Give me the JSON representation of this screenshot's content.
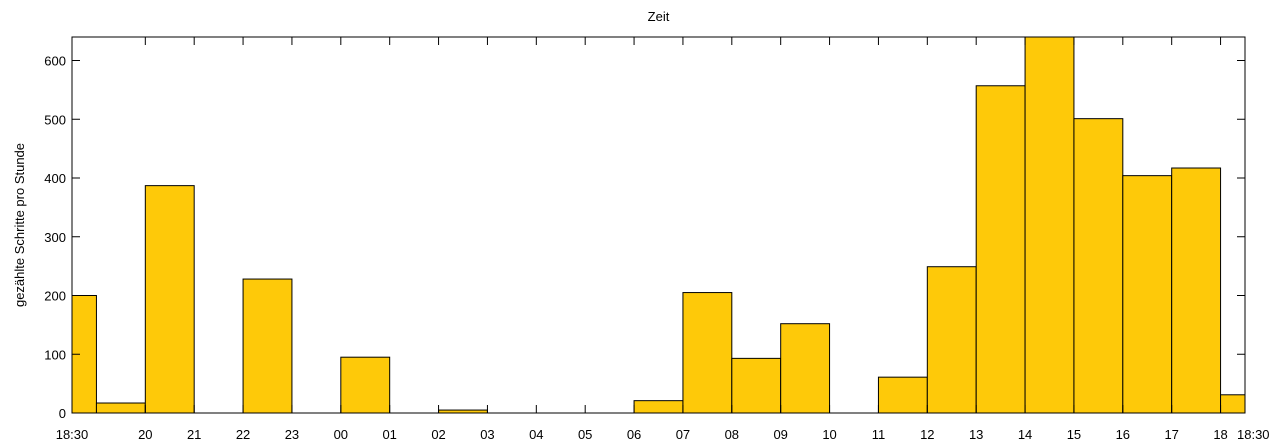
{
  "chart_data": {
    "type": "bar",
    "title": "Zeit",
    "xlabel": "",
    "ylabel": "gezählte Schritte pro Stunde",
    "ylim": [
      0,
      640
    ],
    "yticks": [
      0,
      100,
      200,
      300,
      400,
      500,
      600
    ],
    "xlim": [
      "18:30",
      "18:30 (next day)"
    ],
    "xtick_labels": [
      "18:30",
      "20",
      "21",
      "22",
      "23",
      "00",
      "01",
      "02",
      "03",
      "04",
      "05",
      "06",
      "07",
      "08",
      "09",
      "10",
      "11",
      "12",
      "13",
      "14",
      "15",
      "16",
      "17",
      "18",
      "18:30"
    ],
    "xtick_hours": [
      18.5,
      20,
      21,
      22,
      23,
      24,
      25,
      26,
      27,
      28,
      29,
      30,
      31,
      32,
      33,
      34,
      35,
      36,
      37,
      38,
      39,
      40,
      41,
      42,
      42.5
    ],
    "bars": [
      {
        "start": "18:30",
        "end": "19:00",
        "value": 200
      },
      {
        "start": "19:00",
        "end": "20:00",
        "value": 17
      },
      {
        "start": "20:00",
        "end": "21:00",
        "value": 387
      },
      {
        "start": "21:00",
        "end": "22:00",
        "value": 0
      },
      {
        "start": "22:00",
        "end": "23:00",
        "value": 228
      },
      {
        "start": "23:00",
        "end": "00:00",
        "value": 0
      },
      {
        "start": "00:00",
        "end": "01:00",
        "value": 95
      },
      {
        "start": "01:00",
        "end": "02:00",
        "value": 0
      },
      {
        "start": "02:00",
        "end": "03:00",
        "value": 5
      },
      {
        "start": "03:00",
        "end": "04:00",
        "value": 0
      },
      {
        "start": "04:00",
        "end": "05:00",
        "value": 0
      },
      {
        "start": "05:00",
        "end": "06:00",
        "value": 0
      },
      {
        "start": "06:00",
        "end": "07:00",
        "value": 21
      },
      {
        "start": "07:00",
        "end": "08:00",
        "value": 205
      },
      {
        "start": "08:00",
        "end": "09:00",
        "value": 93
      },
      {
        "start": "09:00",
        "end": "10:00",
        "value": 152
      },
      {
        "start": "10:00",
        "end": "11:00",
        "value": 0
      },
      {
        "start": "11:00",
        "end": "12:00",
        "value": 61
      },
      {
        "start": "12:00",
        "end": "13:00",
        "value": 249
      },
      {
        "start": "13:00",
        "end": "14:00",
        "value": 557
      },
      {
        "start": "14:00",
        "end": "15:00",
        "value": 643
      },
      {
        "start": "15:00",
        "end": "16:00",
        "value": 501
      },
      {
        "start": "16:00",
        "end": "17:00",
        "value": 404
      },
      {
        "start": "17:00",
        "end": "18:00",
        "value": 417
      },
      {
        "start": "18:00",
        "end": "18:30",
        "value": 31
      }
    ],
    "bar_color": "#fec909",
    "bar_edge_color": "#000000",
    "grid": false
  }
}
